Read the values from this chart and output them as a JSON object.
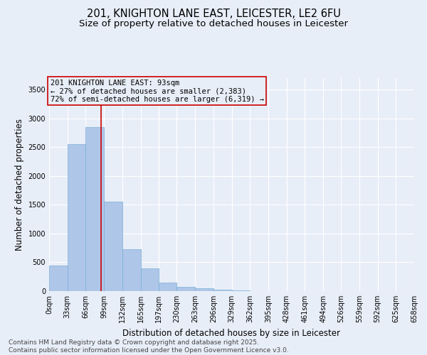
{
  "title_line1": "201, KNIGHTON LANE EAST, LEICESTER, LE2 6FU",
  "title_line2": "Size of property relative to detached houses in Leicester",
  "xlabel": "Distribution of detached houses by size in Leicester",
  "ylabel": "Number of detached properties",
  "bin_labels": [
    "0sqm",
    "33sqm",
    "66sqm",
    "99sqm",
    "132sqm",
    "165sqm",
    "197sqm",
    "230sqm",
    "263sqm",
    "296sqm",
    "329sqm",
    "362sqm",
    "395sqm",
    "428sqm",
    "461sqm",
    "494sqm",
    "526sqm",
    "559sqm",
    "592sqm",
    "625sqm",
    "658sqm"
  ],
  "bin_edges": [
    0,
    33,
    66,
    99,
    132,
    165,
    197,
    230,
    263,
    296,
    329,
    362,
    395,
    428,
    461,
    494,
    526,
    559,
    592,
    625,
    658
  ],
  "bar_heights": [
    450,
    2550,
    2850,
    1550,
    730,
    400,
    150,
    80,
    50,
    30,
    10,
    5,
    2,
    1,
    0,
    0,
    0,
    0,
    0,
    0
  ],
  "bar_color": "#aec6e8",
  "bar_edge_color": "#7bafd4",
  "bar_linewidth": 0.5,
  "property_size": 93,
  "vline_color": "#cc0000",
  "annotation_box_edgecolor": "#cc0000",
  "annotation_text_line1": "201 KNIGHTON LANE EAST: 93sqm",
  "annotation_text_line2": "← 27% of detached houses are smaller (2,383)",
  "annotation_text_line3": "72% of semi-detached houses are larger (6,319) →",
  "ylim": [
    0,
    3700
  ],
  "yticks": [
    0,
    500,
    1000,
    1500,
    2000,
    2500,
    3000,
    3500
  ],
  "background_color": "#e8eef8",
  "grid_color": "#ffffff",
  "footer_line1": "Contains HM Land Registry data © Crown copyright and database right 2025.",
  "footer_line2": "Contains public sector information licensed under the Open Government Licence v3.0.",
  "title_fontsize": 10.5,
  "subtitle_fontsize": 9.5,
  "axis_label_fontsize": 8.5,
  "tick_fontsize": 7,
  "annotation_fontsize": 7.5,
  "footer_fontsize": 6.5
}
